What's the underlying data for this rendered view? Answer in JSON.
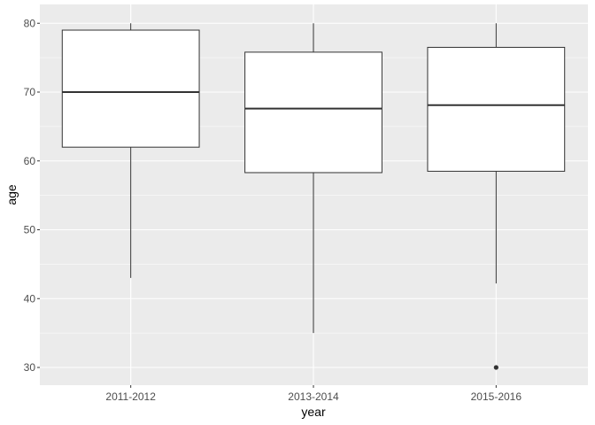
{
  "chart_data": {
    "type": "boxplot",
    "title": "",
    "xlabel": "year",
    "ylabel": "age",
    "ylim": [
      28.8,
      80
    ],
    "yticks": [
      30,
      40,
      50,
      60,
      70,
      80
    ],
    "ytick_labels": [
      "30",
      "40",
      "50",
      "60",
      "70",
      "80"
    ],
    "grid": true,
    "legend": "none",
    "categories": [
      "2011-2012",
      "2013-2014",
      "2015-2016"
    ],
    "series": [
      {
        "name": "2011-2012",
        "min": 43,
        "q1": 62,
        "median": 70,
        "q3": 79,
        "max": 80,
        "outliers": []
      },
      {
        "name": "2013-2014",
        "min": 35,
        "q1": 58.3,
        "median": 67.6,
        "q3": 75.8,
        "max": 80,
        "outliers": []
      },
      {
        "name": "2015-2016",
        "min": 42.2,
        "q1": 58.5,
        "median": 68.1,
        "q3": 76.5,
        "max": 80,
        "outliers": [
          30
        ]
      }
    ],
    "colors": {
      "panel": "#ebebeb",
      "grid": "#ffffff",
      "box_fill": "#ffffff",
      "box_stroke": "#333333",
      "tick": "#333333"
    }
  }
}
